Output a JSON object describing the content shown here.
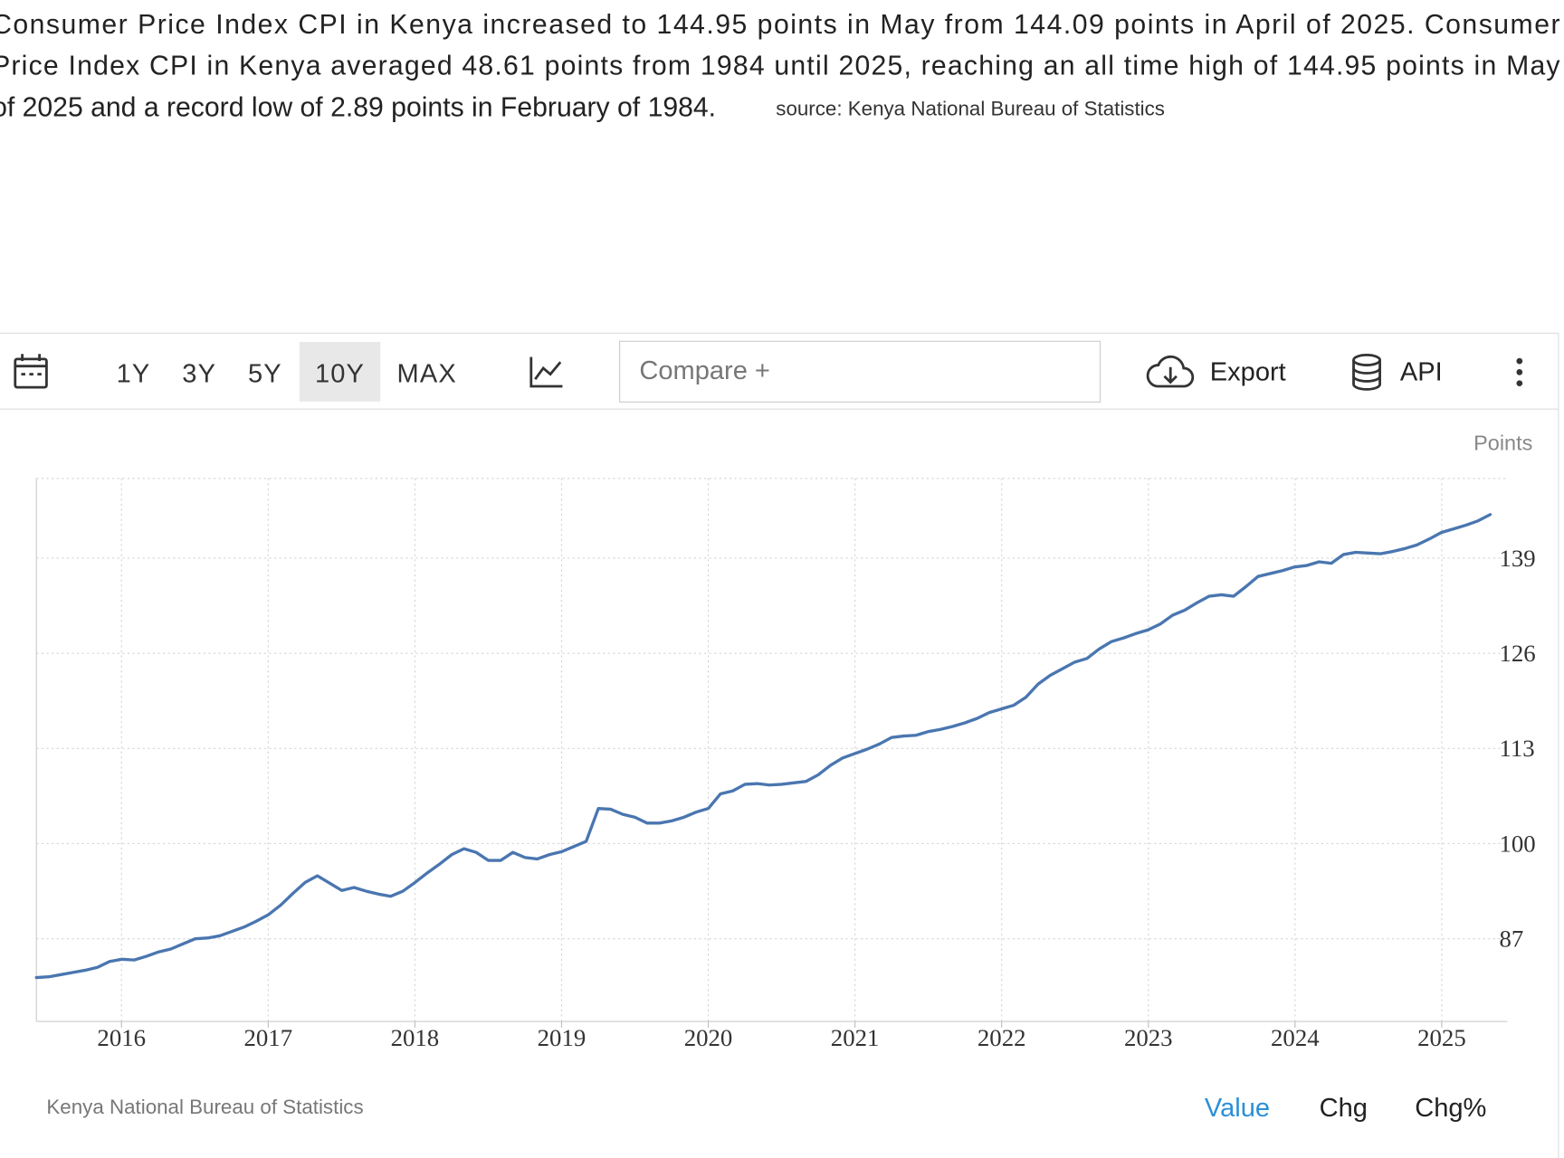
{
  "page": {
    "paragraph": [
      "Consumer Price Index CPI in Kenya increased to 144.95 points in May from 144.09 points in April of 2025. Consumer",
      "Price Index CPI in Kenya averaged 48.61 points from 1984 until 2025, reaching an all time high of 144.95 points in May",
      "of 2025 and a record low of 2.89 points in February of 1984."
    ],
    "source": "source: Kenya National Bureau of Statistics",
    "toolbar": {
      "ranges": [
        "1Y",
        "3Y",
        "5Y",
        "10Y",
        "MAX"
      ],
      "compare": "Compare +",
      "export": "Export",
      "api": "API"
    },
    "tabs": [
      "Value",
      "Chg",
      "Chg%"
    ]
  },
  "chart_data": {
    "type": "line",
    "y_unit": "Points",
    "footer_source": "Kenya National Bureau of Statistics",
    "color": "#4a76b0",
    "xlim": [
      2015.42,
      2025.33
    ],
    "xticks": [
      2016,
      2017,
      2018,
      2019,
      2020,
      2021,
      2022,
      2023,
      2024,
      2025
    ],
    "ylim": [
      75.7,
      149.9
    ],
    "yticks": [
      87,
      100,
      113,
      126,
      139
    ],
    "grid": true,
    "values": [
      81.7,
      81.8,
      82.1,
      82.4,
      82.7,
      83.1,
      83.9,
      84.2,
      84.1,
      84.6,
      85.2,
      85.6,
      86.3,
      87.0,
      87.1,
      87.4,
      88.0,
      88.6,
      89.4,
      90.3,
      91.6,
      93.2,
      94.7,
      95.6,
      94.6,
      93.6,
      94.0,
      93.5,
      93.1,
      92.8,
      93.5,
      94.7,
      96.0,
      97.2,
      98.5,
      99.3,
      98.8,
      97.7,
      97.7,
      98.8,
      98.1,
      97.9,
      98.5,
      98.9,
      99.6,
      100.3,
      104.8,
      104.7,
      104.0,
      103.6,
      102.8,
      102.8,
      103.1,
      103.6,
      104.3,
      104.8,
      106.8,
      107.2,
      108.1,
      108.2,
      108.0,
      108.1,
      108.3,
      108.5,
      109.4,
      110.7,
      111.7,
      112.3,
      112.9,
      113.6,
      114.5,
      114.7,
      114.8,
      115.3,
      115.6,
      116.0,
      116.5,
      117.1,
      117.9,
      118.4,
      118.9,
      120.0,
      121.8,
      123.0,
      123.9,
      124.8,
      125.3,
      126.6,
      127.6,
      128.1,
      128.7,
      129.2,
      130.0,
      131.2,
      131.9,
      132.9,
      133.8,
      134.0,
      133.8,
      135.1,
      136.5,
      136.9,
      137.3,
      137.8,
      138.0,
      138.5,
      138.3,
      139.5,
      139.8,
      139.7,
      139.6,
      139.9,
      140.3,
      140.8,
      141.6,
      142.5,
      143.0,
      143.5,
      144.09,
      144.95
    ]
  }
}
